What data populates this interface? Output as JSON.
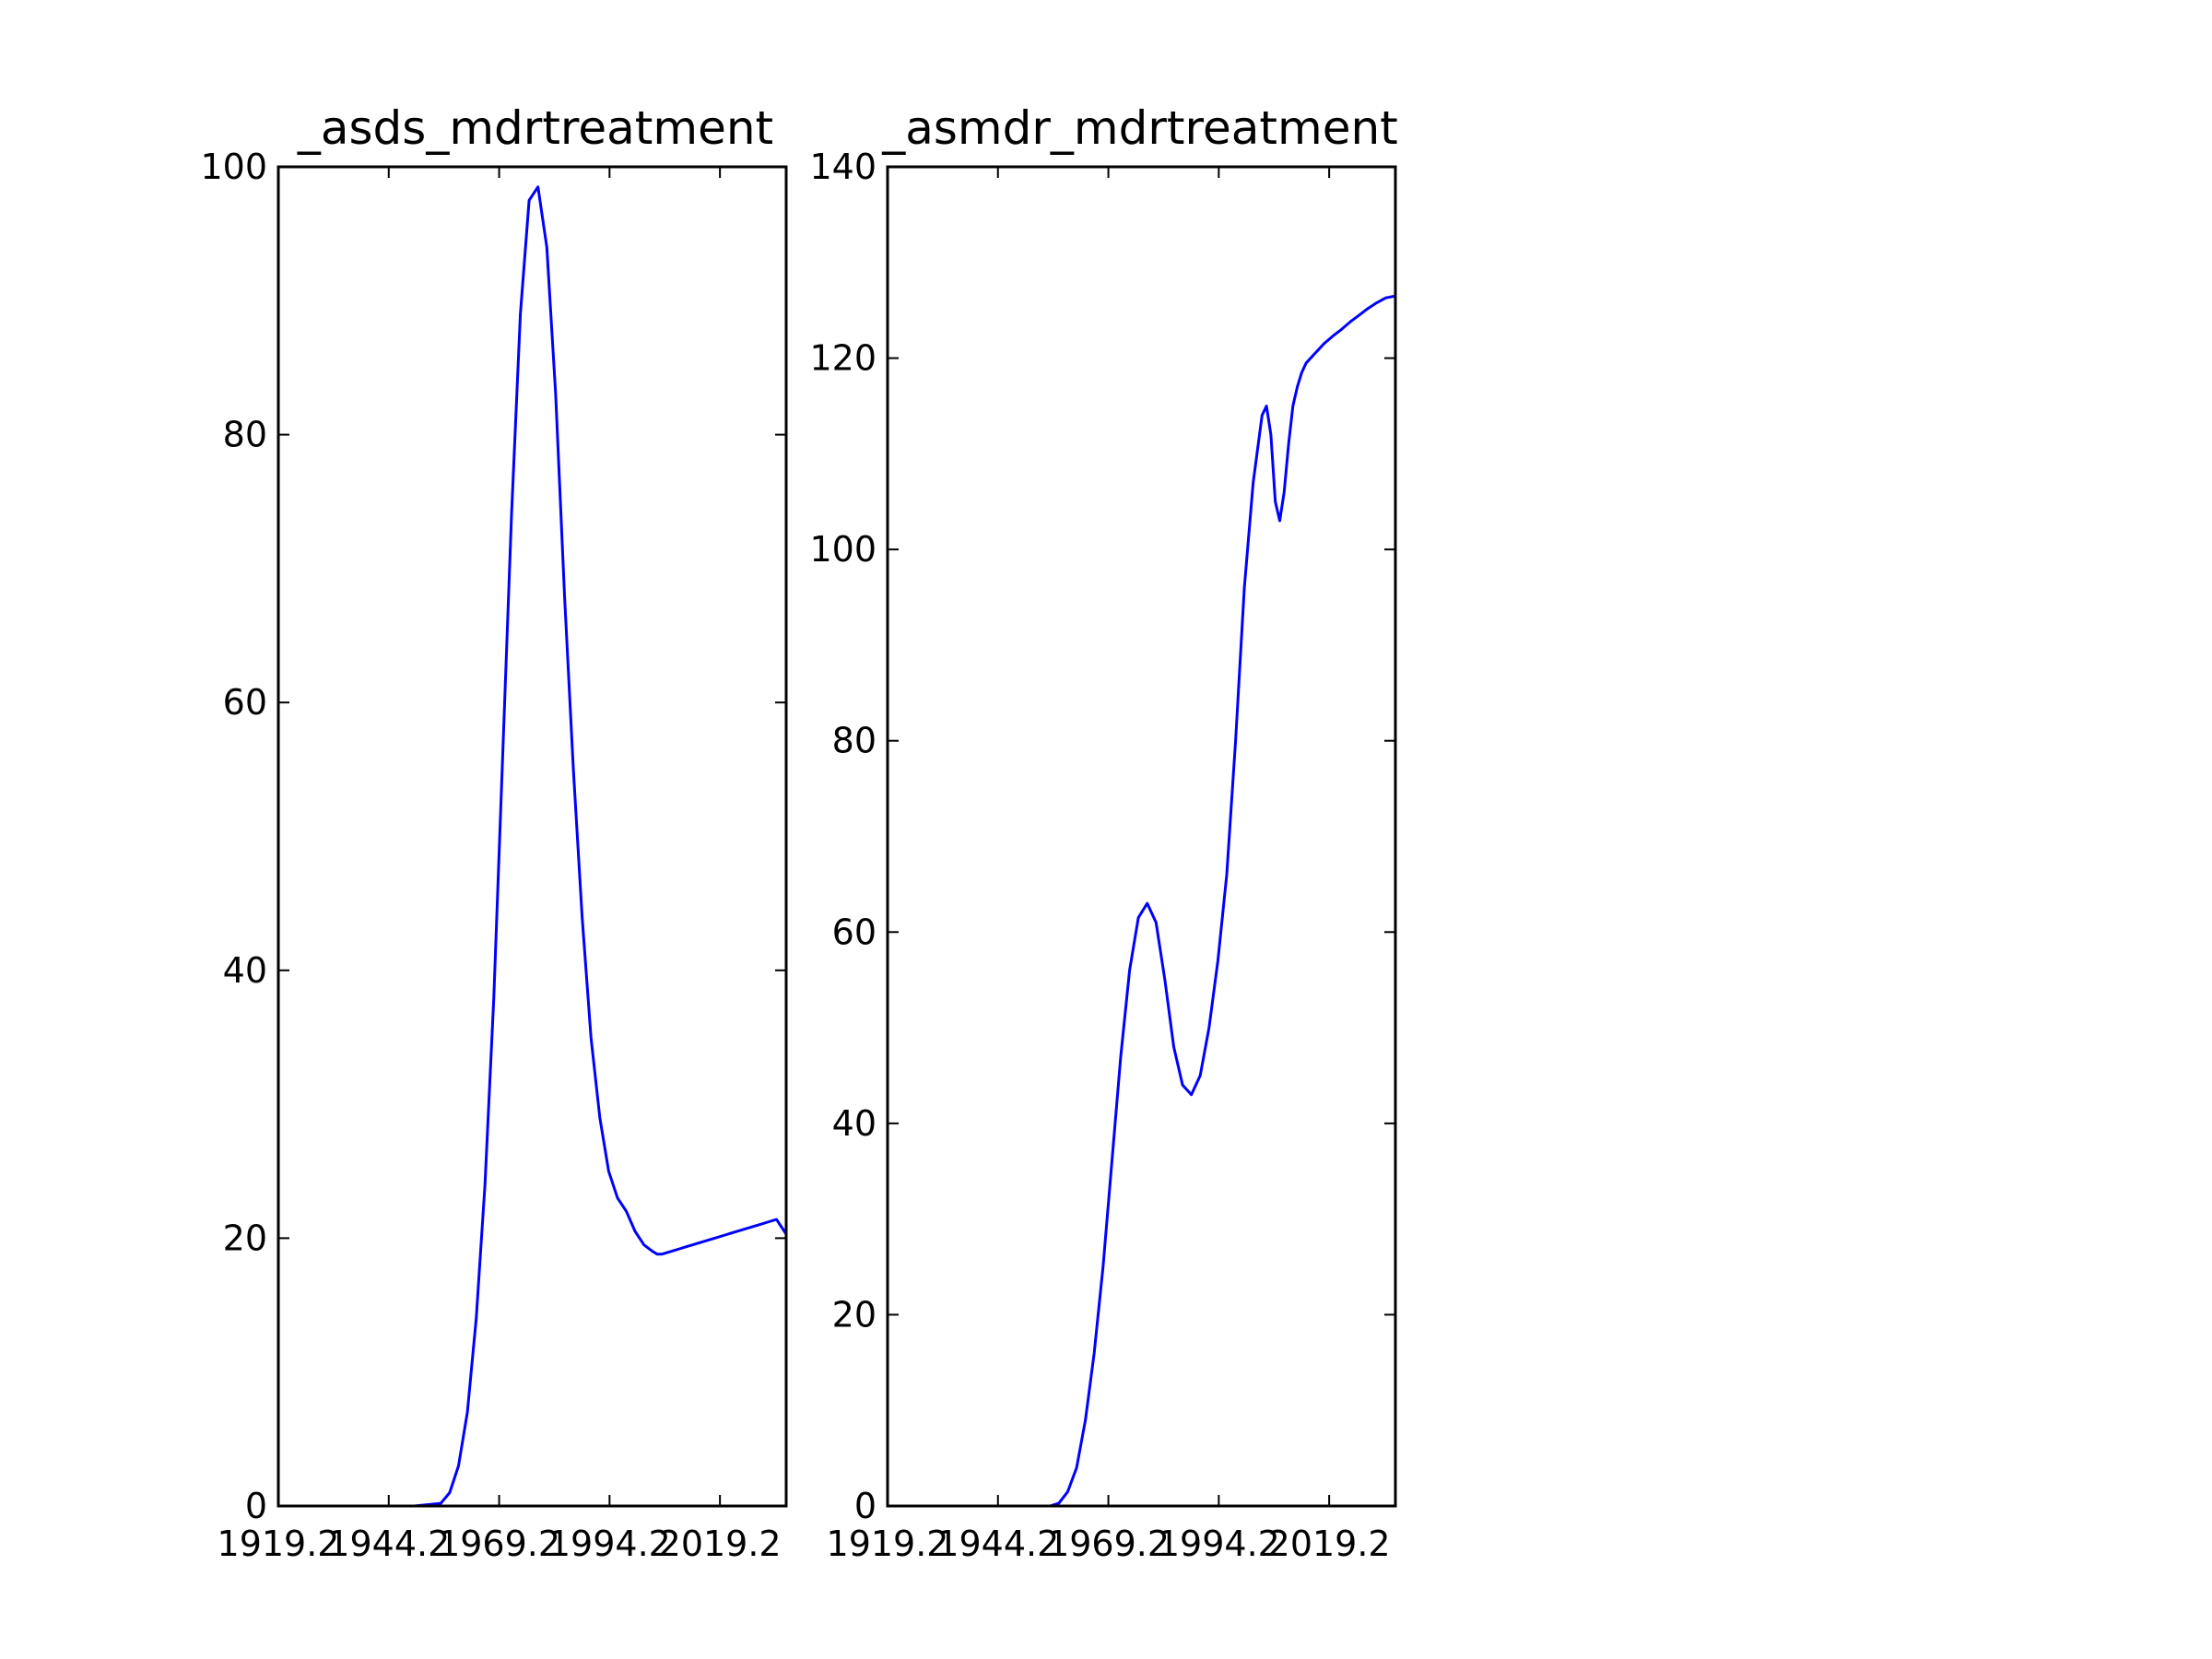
{
  "chart_data": [
    {
      "type": "line",
      "title": "_asds_mdrtreatment",
      "xlabel": "",
      "ylabel": "",
      "xlim": [
        1919.2,
        2034.2
      ],
      "ylim": [
        0,
        100
      ],
      "xticks": [
        1919.2,
        1944.2,
        1969.2,
        1994.2,
        2019.2
      ],
      "xtick_labels": [
        "1919.2",
        "1944.2",
        "1969.2",
        "1994.2",
        "2019.2"
      ],
      "yticks": [
        0,
        20,
        40,
        60,
        80,
        100
      ],
      "ytick_labels": [
        "0",
        "20",
        "40",
        "60",
        "80",
        "100"
      ],
      "grid": false,
      "color": "#0000ff",
      "series": [
        {
          "x": [
            1919.2,
            1950,
            1956,
            1958,
            1960,
            1962,
            1964,
            1966,
            1968,
            1970,
            1972,
            1974,
            1976,
            1978,
            1980,
            1982,
            1984,
            1986,
            1988,
            1990,
            1992,
            1994,
            1996,
            1998,
            2000,
            2002,
            2004,
            2005,
            2006,
            2008,
            2010,
            2011,
            2012,
            2013,
            2014,
            2016,
            2018,
            2020,
            2022,
            2024,
            2026,
            2028,
            2030,
            2032,
            2034.2
          ],
          "y": [
            0,
            0,
            0.2,
            1,
            3,
            7,
            14,
            24,
            38,
            56,
            74,
            89,
            97.5,
            98.5,
            94,
            83,
            68,
            55,
            44,
            35,
            29,
            25,
            23,
            22,
            20.5,
            19.5,
            19,
            18.8,
            18.8,
            19,
            19.2,
            19.3,
            19.4,
            19.5,
            19.6,
            19.8,
            20,
            20.2,
            20.4,
            20.6,
            20.8,
            21,
            21.2,
            21.4,
            20.3
          ]
        }
      ]
    },
    {
      "type": "line",
      "title": "_asmdr_mdrtreatment",
      "xlabel": "",
      "ylabel": "",
      "xlim": [
        1919.2,
        2034.2
      ],
      "ylim": [
        0,
        140
      ],
      "xticks": [
        1919.2,
        1944.2,
        1969.2,
        1994.2,
        2019.2
      ],
      "xtick_labels": [
        "1919.2",
        "1944.2",
        "1969.2",
        "1994.2",
        "2019.2"
      ],
      "yticks": [
        0,
        20,
        40,
        60,
        80,
        100,
        120,
        140
      ],
      "ytick_labels": [
        "0",
        "20",
        "40",
        "60",
        "80",
        "100",
        "120",
        "140"
      ],
      "grid": false,
      "color": "#0000ff",
      "series": [
        {
          "x": [
            1919.2,
            1956,
            1958,
            1960,
            1962,
            1964,
            1966,
            1968,
            1970,
            1972,
            1974,
            1976,
            1978,
            1980,
            1982,
            1984,
            1986,
            1988,
            1990,
            1992,
            1994,
            1996,
            1998,
            2000,
            2002,
            2004,
            2005,
            2006,
            2007,
            2008,
            2009,
            2010,
            2011,
            2012,
            2013,
            2014,
            2016,
            2018,
            2020,
            2022,
            2024,
            2026,
            2028,
            2030,
            2032,
            2034.2
          ],
          "y": [
            0,
            0,
            0.3,
            1.5,
            4,
            9,
            16,
            25,
            36,
            47,
            56,
            61.5,
            63,
            61,
            55,
            48,
            44,
            43,
            45,
            50,
            57,
            66,
            80,
            96,
            107,
            114,
            115,
            112,
            105,
            103,
            106,
            111,
            115,
            117,
            118.5,
            119.5,
            120.5,
            121.5,
            122.3,
            123,
            123.8,
            124.5,
            125.2,
            125.8,
            126.3,
            126.5
          ]
        }
      ]
    }
  ]
}
